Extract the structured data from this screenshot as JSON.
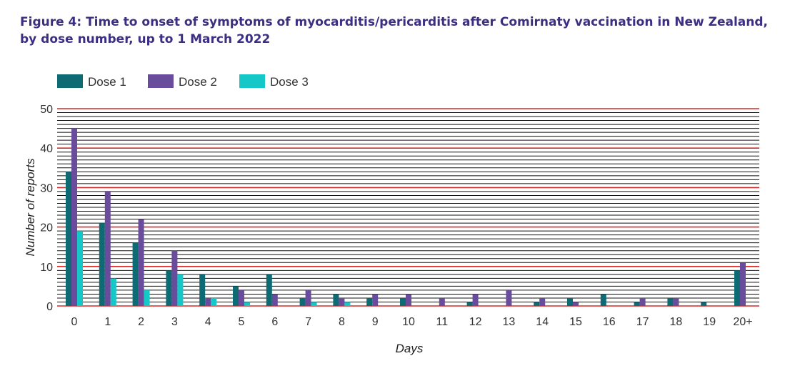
{
  "chart_data": {
    "type": "bar",
    "title": "Figure 4: Time to onset of symptoms of myocarditis/pericarditis after Comirnaty vaccination in New Zealand, by dose number, up to 1 March 2022",
    "xlabel": "Days",
    "ylabel": "Number of reports",
    "ylim": [
      0,
      50
    ],
    "yticks": [
      0,
      10,
      20,
      30,
      40,
      50
    ],
    "grid": true,
    "legend_position": "top-left",
    "categories": [
      "0",
      "1",
      "2",
      "3",
      "4",
      "5",
      "6",
      "7",
      "8",
      "9",
      "10",
      "11",
      "12",
      "13",
      "14",
      "15",
      "16",
      "17",
      "18",
      "19",
      "20+"
    ],
    "series": [
      {
        "name": "Dose 1",
        "color": "#0e6b73",
        "values": [
          34,
          21,
          16,
          9,
          8,
          5,
          8,
          2,
          3,
          2,
          2,
          0,
          1,
          0,
          1,
          2,
          3,
          1,
          2,
          1,
          9
        ]
      },
      {
        "name": "Dose 2",
        "color": "#6a4c9c",
        "values": [
          45,
          29,
          22,
          14,
          2,
          4,
          3,
          4,
          2,
          3,
          3,
          2,
          3,
          4,
          2,
          1,
          0,
          2,
          2,
          0,
          11
        ]
      },
      {
        "name": "Dose 3",
        "color": "#14c8c8",
        "values": [
          19,
          7,
          4,
          8,
          2,
          1,
          0,
          1,
          1,
          0,
          0,
          0,
          0,
          0,
          0,
          0,
          0,
          0,
          0,
          0,
          0
        ]
      }
    ]
  }
}
